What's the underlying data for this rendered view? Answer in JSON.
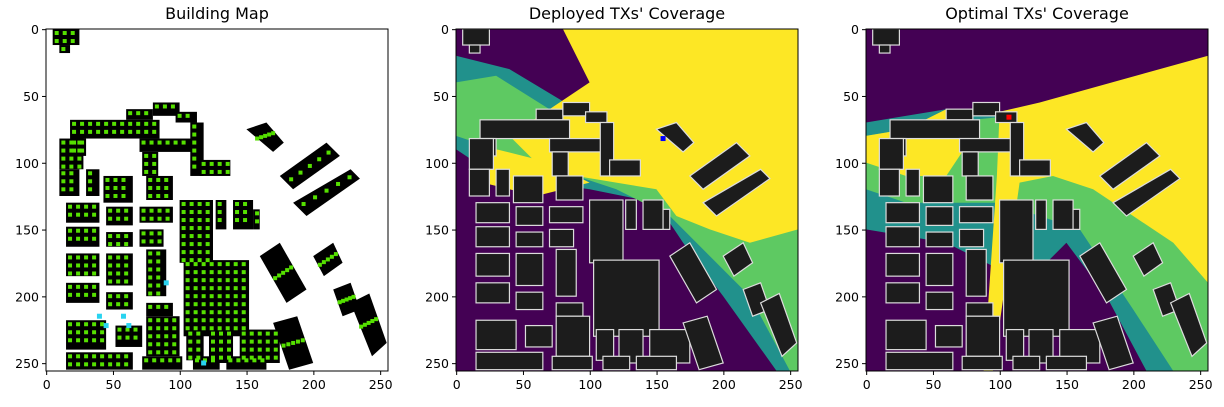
{
  "figure": {
    "title": "",
    "panels_note": "three heatmap panels"
  },
  "chart_data": [
    {
      "type": "heatmap",
      "title": "Building Map",
      "xlabel": "",
      "ylabel": "",
      "xlim": [
        0,
        255
      ],
      "ylim": [
        255,
        0
      ],
      "xticks": [
        0,
        50,
        100,
        150,
        200,
        250
      ],
      "yticks": [
        0,
        50,
        100,
        150,
        200,
        250
      ],
      "grid": false,
      "legend": "none",
      "colors": {
        "background": "#ffffff",
        "building": "#000000",
        "sensor": "#55e000",
        "highlight": "#29d3f0"
      }
    },
    {
      "type": "heatmap",
      "title": "Deployed TXs' Coverage",
      "xlabel": "",
      "ylabel": "",
      "xlim": [
        0,
        255
      ],
      "ylim": [
        255,
        0
      ],
      "xticks": [
        0,
        50,
        100,
        150,
        200,
        250
      ],
      "yticks": [
        0,
        50,
        100,
        150,
        200,
        250
      ],
      "grid": false,
      "legend": "none",
      "colors": {
        "level0": "#440154",
        "level1": "#21918c",
        "level2": "#5ec962",
        "level3": "#fde725",
        "building": "#1c1c1c",
        "tx": "#0000ff"
      }
    },
    {
      "type": "heatmap",
      "title": "Optimal TXs' Coverage",
      "xlabel": "",
      "ylabel": "",
      "xlim": [
        0,
        255
      ],
      "ylim": [
        255,
        0
      ],
      "xticks": [
        0,
        50,
        100,
        150,
        200,
        250
      ],
      "yticks": [
        0,
        50,
        100,
        150,
        200,
        250
      ],
      "grid": false,
      "legend": "none",
      "colors": {
        "level0": "#440154",
        "level1": "#21918c",
        "level2": "#5ec962",
        "level3": "#fde725",
        "building": "#1c1c1c",
        "tx": "#ff0000"
      }
    }
  ],
  "scene": {
    "buildings": [
      [
        5,
        0,
        25,
        12
      ],
      [
        10,
        12,
        18,
        18
      ],
      [
        60,
        60,
        80,
        68
      ],
      [
        80,
        55,
        100,
        65
      ],
      [
        97,
        62,
        113,
        70
      ],
      [
        18,
        68,
        85,
        82
      ],
      [
        18,
        82,
        30,
        95
      ],
      [
        10,
        82,
        28,
        105
      ],
      [
        70,
        82,
        110,
        92
      ],
      [
        72,
        92,
        84,
        110
      ],
      [
        108,
        70,
        118,
        110
      ],
      [
        115,
        98,
        138,
        110
      ],
      [
        10,
        105,
        25,
        125
      ],
      [
        30,
        105,
        40,
        125
      ],
      [
        43,
        110,
        65,
        130
      ],
      [
        75,
        110,
        95,
        128
      ],
      [
        15,
        130,
        40,
        145
      ],
      [
        45,
        133,
        65,
        147
      ],
      [
        70,
        133,
        95,
        145
      ],
      [
        100,
        128,
        125,
        175
      ],
      [
        127,
        128,
        135,
        150
      ],
      [
        140,
        128,
        155,
        150
      ],
      [
        155,
        135,
        160,
        150
      ],
      [
        15,
        148,
        40,
        163
      ],
      [
        45,
        152,
        65,
        163
      ],
      [
        70,
        150,
        88,
        163
      ],
      [
        15,
        168,
        40,
        185
      ],
      [
        45,
        168,
        65,
        192
      ],
      [
        75,
        165,
        90,
        200
      ],
      [
        103,
        173,
        152,
        230
      ],
      [
        15,
        190,
        40,
        205
      ],
      [
        45,
        197,
        65,
        210
      ],
      [
        75,
        205,
        95,
        215
      ],
      [
        15,
        218,
        45,
        240
      ],
      [
        52,
        222,
        72,
        238
      ],
      [
        75,
        215,
        100,
        245
      ],
      [
        105,
        225,
        118,
        248
      ],
      [
        122,
        225,
        140,
        250
      ],
      [
        145,
        225,
        175,
        250
      ],
      [
        15,
        242,
        65,
        255
      ],
      [
        72,
        245,
        102,
        255
      ],
      [
        110,
        245,
        130,
        255
      ],
      [
        135,
        245,
        165,
        255
      ]
    ],
    "diag_buildings": [
      [
        [
          150,
          75
        ],
        [
          165,
          70
        ],
        [
          178,
          85
        ],
        [
          170,
          92
        ]
      ],
      [
        [
          175,
          110
        ],
        [
          210,
          85
        ],
        [
          220,
          95
        ],
        [
          185,
          120
        ]
      ],
      [
        [
          185,
          130
        ],
        [
          228,
          105
        ],
        [
          235,
          112
        ],
        [
          195,
          140
        ]
      ],
      [
        [
          160,
          170
        ],
        [
          175,
          160
        ],
        [
          195,
          195
        ],
        [
          180,
          205
        ]
      ],
      [
        [
          200,
          170
        ],
        [
          215,
          160
        ],
        [
          222,
          175
        ],
        [
          208,
          185
        ]
      ],
      [
        [
          215,
          195
        ],
        [
          228,
          190
        ],
        [
          235,
          210
        ],
        [
          222,
          215
        ]
      ],
      [
        [
          170,
          220
        ],
        [
          188,
          215
        ],
        [
          200,
          250
        ],
        [
          182,
          255
        ]
      ],
      [
        [
          228,
          205
        ],
        [
          242,
          198
        ],
        [
          255,
          235
        ],
        [
          244,
          245
        ]
      ]
    ],
    "cyan_points": [
      [
        40,
        215
      ],
      [
        45,
        222
      ],
      [
        58,
        215
      ],
      [
        62,
        222
      ],
      [
        90,
        190
      ],
      [
        118,
        250
      ]
    ]
  }
}
